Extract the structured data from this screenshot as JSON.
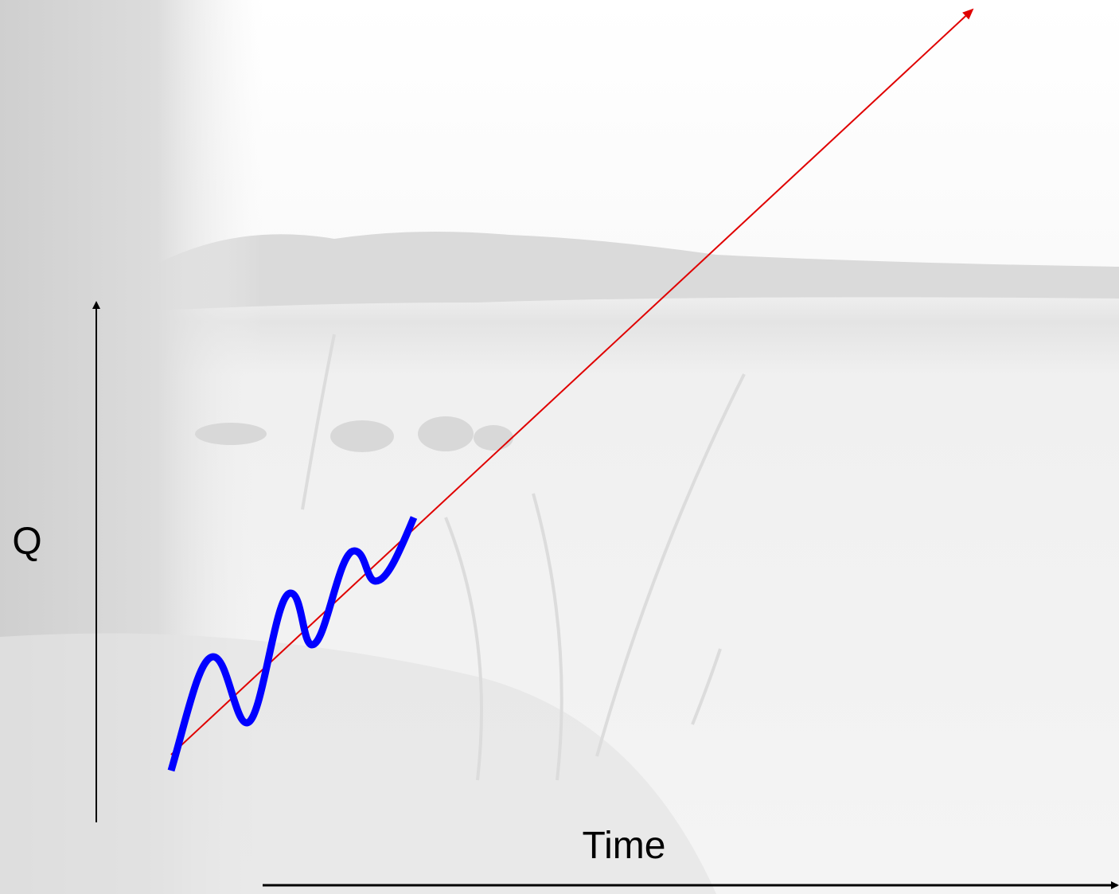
{
  "axes": {
    "y_label": "Q",
    "x_label": "Time"
  }
}
